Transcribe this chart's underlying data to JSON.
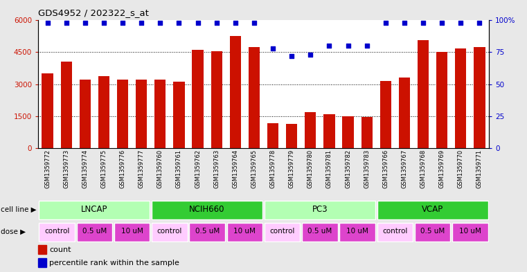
{
  "title": "GDS4952 / 202322_s_at",
  "samples": [
    "GSM1359772",
    "GSM1359773",
    "GSM1359774",
    "GSM1359775",
    "GSM1359776",
    "GSM1359777",
    "GSM1359760",
    "GSM1359761",
    "GSM1359762",
    "GSM1359763",
    "GSM1359764",
    "GSM1359765",
    "GSM1359778",
    "GSM1359779",
    "GSM1359780",
    "GSM1359781",
    "GSM1359782",
    "GSM1359783",
    "GSM1359766",
    "GSM1359767",
    "GSM1359768",
    "GSM1359769",
    "GSM1359770",
    "GSM1359771"
  ],
  "counts": [
    3500,
    4050,
    3200,
    3380,
    3200,
    3200,
    3200,
    3100,
    4600,
    4550,
    5250,
    4750,
    1180,
    1130,
    1700,
    1580,
    1480,
    1450,
    3150,
    3320,
    5050,
    4500,
    4680,
    4720
  ],
  "percentiles": [
    98,
    98,
    98,
    98,
    98,
    98,
    98,
    98,
    98,
    98,
    98,
    98,
    78,
    72,
    73,
    80,
    80,
    80,
    98,
    98,
    98,
    98,
    98,
    98
  ],
  "cell_lines": [
    {
      "name": "LNCAP",
      "start": 0,
      "end": 6,
      "color": "#b3ffb3"
    },
    {
      "name": "NCIH660",
      "start": 6,
      "end": 12,
      "color": "#33cc33"
    },
    {
      "name": "PC3",
      "start": 12,
      "end": 18,
      "color": "#b3ffb3"
    },
    {
      "name": "VCAP",
      "start": 18,
      "end": 24,
      "color": "#33cc33"
    }
  ],
  "doses": [
    {
      "name": "control",
      "start": 0,
      "end": 2,
      "color": "#ffccff"
    },
    {
      "name": "0.5 uM",
      "start": 2,
      "end": 4,
      "color": "#dd44cc"
    },
    {
      "name": "10 uM",
      "start": 4,
      "end": 6,
      "color": "#dd44cc"
    },
    {
      "name": "control",
      "start": 6,
      "end": 8,
      "color": "#ffccff"
    },
    {
      "name": "0.5 uM",
      "start": 8,
      "end": 10,
      "color": "#dd44cc"
    },
    {
      "name": "10 uM",
      "start": 10,
      "end": 12,
      "color": "#dd44cc"
    },
    {
      "name": "control",
      "start": 12,
      "end": 14,
      "color": "#ffccff"
    },
    {
      "name": "0.5 uM",
      "start": 14,
      "end": 16,
      "color": "#dd44cc"
    },
    {
      "name": "10 uM",
      "start": 16,
      "end": 18,
      "color": "#dd44cc"
    },
    {
      "name": "control",
      "start": 18,
      "end": 20,
      "color": "#ffccff"
    },
    {
      "name": "0.5 uM",
      "start": 20,
      "end": 22,
      "color": "#dd44cc"
    },
    {
      "name": "10 uM",
      "start": 22,
      "end": 24,
      "color": "#dd44cc"
    }
  ],
  "bar_color": "#cc1100",
  "dot_color": "#0000cc",
  "ylim_left": [
    0,
    6000
  ],
  "ylim_right": [
    0,
    100
  ],
  "yticks_left": [
    0,
    1500,
    3000,
    4500,
    6000
  ],
  "ytick_labels_left": [
    "0",
    "1500",
    "3000",
    "4500",
    "6000"
  ],
  "yticks_right": [
    0,
    25,
    50,
    75,
    100
  ],
  "ytick_labels_right": [
    "0",
    "25",
    "50",
    "75",
    "100%"
  ],
  "bg_color": "#e8e8e8",
  "plot_bg": "#ffffff",
  "grid_color": "#000000"
}
